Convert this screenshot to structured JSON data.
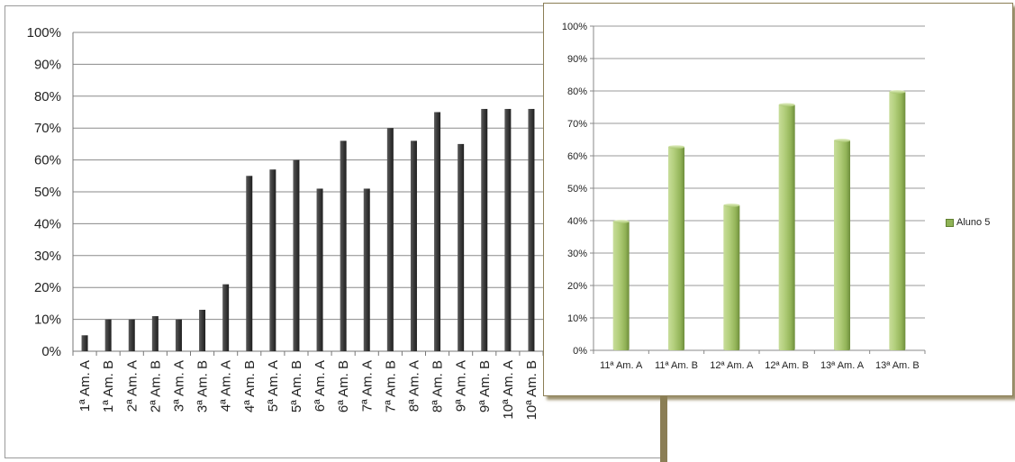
{
  "chart_data": [
    {
      "type": "bar",
      "categories": [
        "1ª Am. A",
        "1ª Am. B",
        "2ª Am. A",
        "2ª Am. B",
        "3ª Am. A",
        "3ª Am. B",
        "4ª Am. A",
        "4ª Am. B",
        "5ª Am. A",
        "5ª Am. B",
        "6ª Am. A",
        "6ª Am. B",
        "7ª Am. A",
        "7ª Am. B",
        "8ª Am. A",
        "8ª Am. B",
        "9ª Am. A",
        "9ª Am. B",
        "10ª Am. A",
        "10ª Am. B"
      ],
      "values": [
        5,
        10,
        10,
        11,
        10,
        13,
        21,
        55,
        57,
        60,
        51,
        66,
        51,
        70,
        66,
        75,
        65,
        76,
        76,
        76
      ],
      "yticks": [
        "0%",
        "10%",
        "20%",
        "30%",
        "40%",
        "50%",
        "60%",
        "70%",
        "80%",
        "90%",
        "100%"
      ],
      "ylim": [
        0,
        100
      ],
      "grid": true,
      "bar_color": "#404040",
      "legend": null
    },
    {
      "type": "bar",
      "categories": [
        "11ª Am. A",
        "11ª Am. B",
        "12ª Am. A",
        "12ª Am. B",
        "13ª Am. A",
        "13ª Am. B"
      ],
      "series": [
        {
          "name": "Aluno 5",
          "values": [
            40,
            63,
            45,
            76,
            65,
            80
          ]
        }
      ],
      "yticks": [
        "0%",
        "10%",
        "20%",
        "30%",
        "40%",
        "50%",
        "60%",
        "70%",
        "80%",
        "90%",
        "100%"
      ],
      "ylim": [
        0,
        100
      ],
      "grid": true,
      "bar_color": "#a6c46d",
      "legend": {
        "position": "right",
        "label": "Aluno 5"
      }
    }
  ]
}
